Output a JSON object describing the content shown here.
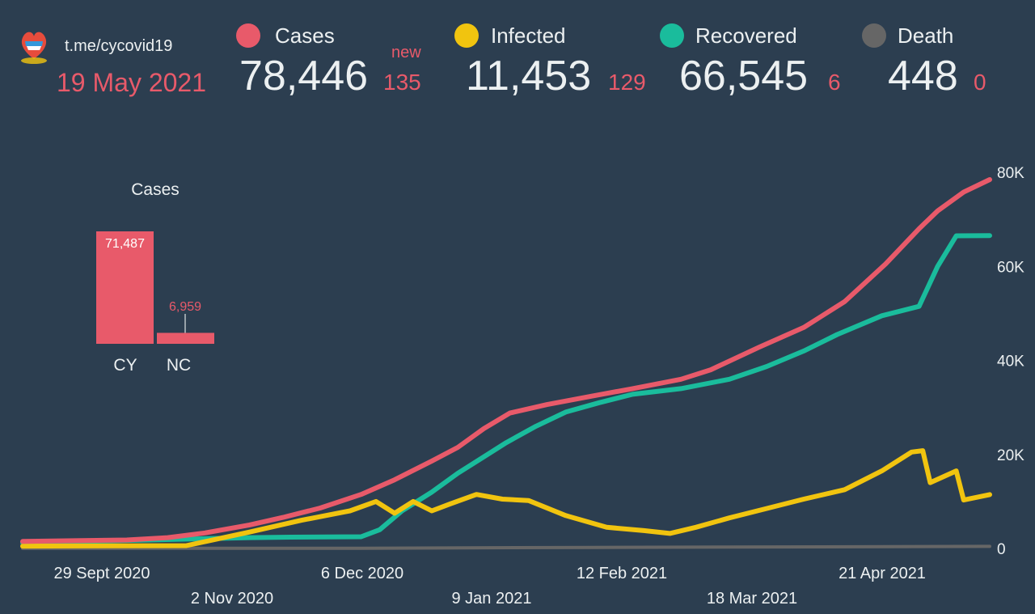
{
  "header": {
    "channel": "t.me/cycovid19",
    "date": "19 May 2021",
    "new_label": "new"
  },
  "stats": [
    {
      "label": "Cases",
      "total": "78,446",
      "new": "135",
      "color": "#e85a6a"
    },
    {
      "label": "Infected",
      "total": "11,453",
      "new": "129",
      "color": "#f1c40f"
    },
    {
      "label": "Recovered",
      "total": "66,545",
      "new": "6",
      "color": "#1abc9c"
    },
    {
      "label": "Death",
      "total": "448",
      "new": "0",
      "color": "#666666"
    }
  ],
  "chart_data": [
    {
      "type": "bar",
      "title": "Cases",
      "categories": [
        "CY",
        "NC"
      ],
      "values": [
        71487,
        6959
      ],
      "value_labels": [
        "71,487",
        "6,959"
      ],
      "color": "#e85a6a"
    },
    {
      "type": "line",
      "x_ticks": [
        "29 Sept 2020",
        "2 Nov 2020",
        "6 Dec 2020",
        "9 Jan 2021",
        "12 Feb 2021",
        "18 Mar 2021",
        "21 Apr 2021"
      ],
      "y_ticks": [
        "0",
        "20K",
        "40K",
        "60K",
        "80K"
      ],
      "ylim": [
        0,
        80000
      ],
      "x_range": [
        "2020-09-01",
        "2021-05-19"
      ],
      "series": [
        {
          "name": "Cases",
          "color": "#e85a6a",
          "points": [
            [
              "2020-09-01",
              1500
            ],
            [
              "2020-09-29",
              1800
            ],
            [
              "2020-10-10",
              2300
            ],
            [
              "2020-10-20",
              3300
            ],
            [
              "2020-11-01",
              5000
            ],
            [
              "2020-11-10",
              6600
            ],
            [
              "2020-11-20",
              8600
            ],
            [
              "2020-12-01",
              11500
            ],
            [
              "2020-12-10",
              14600
            ],
            [
              "2020-12-20",
              18600
            ],
            [
              "2020-12-27",
              21500
            ],
            [
              "2021-01-03",
              25500
            ],
            [
              "2021-01-10",
              28800
            ],
            [
              "2021-01-20",
              30600
            ],
            [
              "2021-02-01",
              32400
            ],
            [
              "2021-02-12",
              34000
            ],
            [
              "2021-02-25",
              36000
            ],
            [
              "2021-03-05",
              38000
            ],
            [
              "2021-03-18",
              42800
            ],
            [
              "2021-03-30",
              47000
            ],
            [
              "2021-04-10",
              52500
            ],
            [
              "2021-04-21",
              60500
            ],
            [
              "2021-04-30",
              68000
            ],
            [
              "2021-05-05",
              71800
            ],
            [
              "2021-05-12",
              75800
            ],
            [
              "2021-05-19",
              78446
            ]
          ]
        },
        {
          "name": "Recovered",
          "color": "#1abc9c",
          "points": [
            [
              "2020-09-01",
              1200
            ],
            [
              "2020-11-01",
              2300
            ],
            [
              "2020-11-12",
              2400
            ],
            [
              "2020-12-01",
              2500
            ],
            [
              "2020-12-06",
              4000
            ],
            [
              "2020-12-12",
              8000
            ],
            [
              "2020-12-20",
              12000
            ],
            [
              "2020-12-27",
              16000
            ],
            [
              "2021-01-03",
              19500
            ],
            [
              "2021-01-09",
              22500
            ],
            [
              "2021-01-17",
              26000
            ],
            [
              "2021-01-25",
              29000
            ],
            [
              "2021-02-03",
              31000
            ],
            [
              "2021-02-12",
              32800
            ],
            [
              "2021-02-25",
              34000
            ],
            [
              "2021-03-10",
              36000
            ],
            [
              "2021-03-20",
              38700
            ],
            [
              "2021-03-30",
              42000
            ],
            [
              "2021-04-08",
              45500
            ],
            [
              "2021-04-20",
              49500
            ],
            [
              "2021-04-30",
              51500
            ],
            [
              "2021-05-05",
              60000
            ],
            [
              "2021-05-10",
              66500
            ],
            [
              "2021-05-19",
              66545
            ]
          ]
        },
        {
          "name": "Infected",
          "color": "#f1c40f",
          "points": [
            [
              "2020-09-01",
              500
            ],
            [
              "2020-10-15",
              600
            ],
            [
              "2020-11-01",
              3500
            ],
            [
              "2020-11-15",
              6000
            ],
            [
              "2020-11-28",
              8000
            ],
            [
              "2020-12-05",
              10000
            ],
            [
              "2020-12-10",
              7500
            ],
            [
              "2020-12-15",
              10000
            ],
            [
              "2020-12-20",
              8000
            ],
            [
              "2020-12-25",
              9500
            ],
            [
              "2021-01-01",
              11500
            ],
            [
              "2021-01-08",
              10500
            ],
            [
              "2021-01-15",
              10200
            ],
            [
              "2021-01-25",
              7000
            ],
            [
              "2021-02-05",
              4500
            ],
            [
              "2021-02-15",
              3800
            ],
            [
              "2021-02-22",
              3200
            ],
            [
              "2021-03-01",
              4500
            ],
            [
              "2021-03-10",
              6500
            ],
            [
              "2021-03-20",
              8500
            ],
            [
              "2021-03-30",
              10500
            ],
            [
              "2021-04-10",
              12500
            ],
            [
              "2021-04-20",
              16500
            ],
            [
              "2021-04-28",
              20500
            ],
            [
              "2021-05-01",
              20800
            ],
            [
              "2021-05-03",
              14000
            ],
            [
              "2021-05-10",
              16500
            ],
            [
              "2021-05-12",
              10300
            ],
            [
              "2021-05-19",
              11453
            ]
          ]
        },
        {
          "name": "Death",
          "color": "#666666",
          "points": [
            [
              "2020-09-01",
              20
            ],
            [
              "2020-12-01",
              60
            ],
            [
              "2021-02-01",
              220
            ],
            [
              "2021-05-19",
              448
            ]
          ]
        }
      ]
    }
  ]
}
